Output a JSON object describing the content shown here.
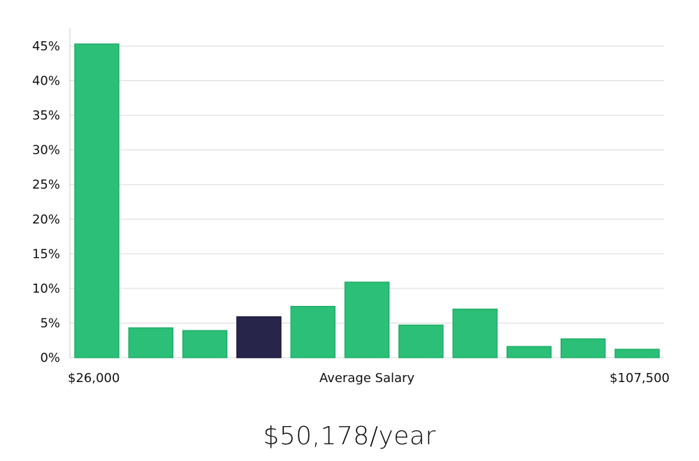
{
  "chart_data": {
    "type": "bar",
    "values": [
      45.3,
      4.3,
      3.9,
      5.9,
      7.4,
      10.9,
      4.7,
      7.0,
      1.6,
      2.7,
      1.2
    ],
    "highlight_index": 3,
    "ylim": [
      0,
      45
    ],
    "yticks": [
      0,
      5,
      10,
      15,
      20,
      25,
      30,
      35,
      40,
      45
    ],
    "ytick_format": "{v}%",
    "x_min_label": "$26,000",
    "x_center_label": "Average Salary",
    "x_max_label": "$107,500",
    "grid": true,
    "colors": {
      "bar": "#2bbf77",
      "highlight": "#27254a",
      "grid": "#d9d9d9",
      "axis": "#cccccc"
    }
  },
  "summary": {
    "average_salary": "$50,178/year"
  }
}
